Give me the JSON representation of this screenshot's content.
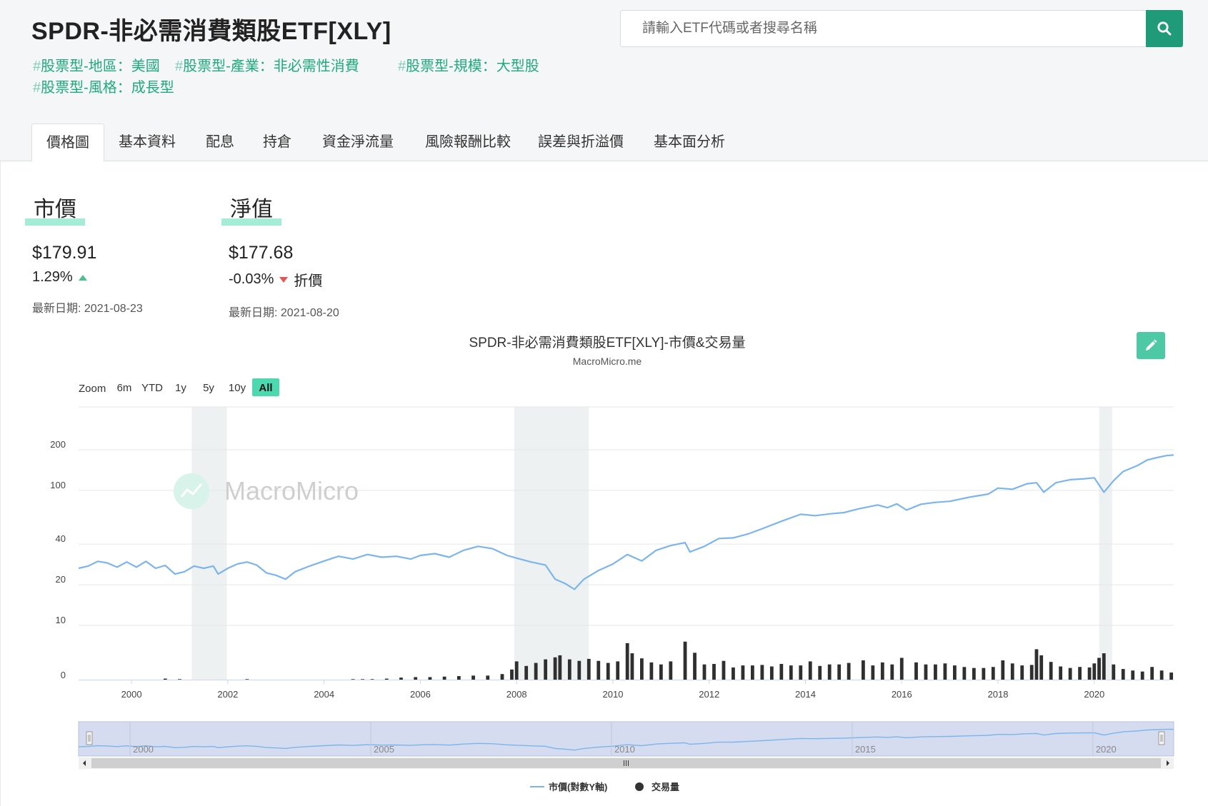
{
  "header": {
    "title": "SPDR-非必需消費類股ETF[XLY]",
    "tags": [
      {
        "hash": "#",
        "label": "股票型-地區：美國"
      },
      {
        "hash": "#",
        "label": "股票型-產業：非必需性消費"
      },
      {
        "hash": "#",
        "label": "股票型-規模：大型股"
      },
      {
        "hash": "#",
        "label": "股票型-風格：成長型"
      }
    ]
  },
  "search": {
    "placeholder": "請輸入ETF代碼或者搜尋名稱",
    "value": "",
    "button_icon": "search-icon"
  },
  "tabs": [
    {
      "label": "價格圖",
      "active": true
    },
    {
      "label": "基本資料",
      "active": false
    },
    {
      "label": "配息",
      "active": false
    },
    {
      "label": "持倉",
      "active": false
    },
    {
      "label": "資金淨流量",
      "active": false
    },
    {
      "label": "風險報酬比較",
      "active": false
    },
    {
      "label": "誤差與折溢價",
      "active": false
    },
    {
      "label": "基本面分析",
      "active": false
    }
  ],
  "market_price": {
    "label": "市價",
    "value": "$179.91",
    "change": "1.29%",
    "direction": "up",
    "date": "最新日期: 2021-08-23"
  },
  "nav": {
    "label": "淨值",
    "value": "$177.68",
    "change": "-0.03%",
    "direction": "down",
    "premium_label": "折價",
    "date": "最新日期: 2021-08-20"
  },
  "colors": {
    "accent": "#1f9b7a",
    "tag": "#1faa7e",
    "price_line": "#7cb5ec",
    "volume_bar": "#2f2f2f",
    "recession": "#eef1f1",
    "up": "#4cc08a",
    "down": "#e25656"
  },
  "chart_data": {
    "type": "line",
    "title": "SPDR-非必需消費類股ETF[XLY]-市價&交易量",
    "subtitle": "MacroMicro.me",
    "watermark": "MacroMicro",
    "zoom": {
      "label": "Zoom",
      "buttons": [
        "6m",
        "YTD",
        "1y",
        "5y",
        "10y",
        "All"
      ],
      "active": "All"
    },
    "x_range": [
      1998.9,
      2021.65
    ],
    "x_ticks": [
      "2000",
      "2002",
      "2004",
      "2006",
      "2008",
      "2010",
      "2012",
      "2014",
      "2016",
      "2018",
      "2020"
    ],
    "y_scale": "log",
    "y_ticks": [
      "200",
      "100",
      "40",
      "20",
      "10"
    ],
    "y_tick_values": [
      200,
      100,
      40,
      20,
      10
    ],
    "volume_axis_label": "0",
    "recessions": [
      [
        2001.25,
        2001.98
      ],
      [
        2007.95,
        2009.5
      ],
      [
        2020.1,
        2020.37
      ]
    ],
    "navigator_ticks": [
      "2000",
      "2005",
      "2010",
      "2015",
      "2020"
    ],
    "series": [
      {
        "name": "市價(對數Y軸)",
        "type": "line",
        "points": [
          [
            1998.9,
            26.5
          ],
          [
            1999.1,
            27.5
          ],
          [
            1999.3,
            29.8
          ],
          [
            1999.5,
            29.0
          ],
          [
            1999.7,
            27.0
          ],
          [
            1999.9,
            29.5
          ],
          [
            2000.1,
            27.0
          ],
          [
            2000.3,
            29.8
          ],
          [
            2000.5,
            26.5
          ],
          [
            2000.7,
            27.8
          ],
          [
            2000.9,
            24.0
          ],
          [
            2001.1,
            25.0
          ],
          [
            2001.3,
            27.5
          ],
          [
            2001.5,
            26.5
          ],
          [
            2001.7,
            27.5
          ],
          [
            2001.8,
            24.0
          ],
          [
            2002.0,
            26.5
          ],
          [
            2002.2,
            28.5
          ],
          [
            2002.4,
            29.5
          ],
          [
            2002.6,
            28.0
          ],
          [
            2002.8,
            24.5
          ],
          [
            2003.0,
            23.5
          ],
          [
            2003.2,
            22.0
          ],
          [
            2003.4,
            25.0
          ],
          [
            2003.7,
            27.5
          ],
          [
            2004.0,
            30.0
          ],
          [
            2004.3,
            32.5
          ],
          [
            2004.6,
            31.0
          ],
          [
            2004.9,
            33.5
          ],
          [
            2005.2,
            32.0
          ],
          [
            2005.5,
            32.5
          ],
          [
            2005.8,
            31.0
          ],
          [
            2006.0,
            33.0
          ],
          [
            2006.3,
            34.0
          ],
          [
            2006.6,
            32.0
          ],
          [
            2006.9,
            36.0
          ],
          [
            2007.2,
            38.5
          ],
          [
            2007.5,
            37.0
          ],
          [
            2007.8,
            33.0
          ],
          [
            2008.0,
            31.5
          ],
          [
            2008.3,
            29.5
          ],
          [
            2008.6,
            28.0
          ],
          [
            2008.8,
            22.0
          ],
          [
            2009.0,
            20.5
          ],
          [
            2009.2,
            18.5
          ],
          [
            2009.4,
            22.0
          ],
          [
            2009.7,
            25.5
          ],
          [
            2010.0,
            28.5
          ],
          [
            2010.3,
            33.5
          ],
          [
            2010.6,
            30.0
          ],
          [
            2010.9,
            36.0
          ],
          [
            2011.2,
            39.0
          ],
          [
            2011.5,
            41.0
          ],
          [
            2011.6,
            35.0
          ],
          [
            2011.9,
            38.5
          ],
          [
            2012.2,
            44.0
          ],
          [
            2012.5,
            44.5
          ],
          [
            2012.8,
            47.5
          ],
          [
            2013.1,
            52.0
          ],
          [
            2013.5,
            59.0
          ],
          [
            2013.9,
            66.5
          ],
          [
            2014.2,
            65.0
          ],
          [
            2014.5,
            67.0
          ],
          [
            2014.8,
            68.5
          ],
          [
            2015.1,
            73.0
          ],
          [
            2015.5,
            78.0
          ],
          [
            2015.7,
            74.5
          ],
          [
            2015.9,
            79.5
          ],
          [
            2016.1,
            71.5
          ],
          [
            2016.4,
            79.0
          ],
          [
            2016.7,
            81.5
          ],
          [
            2017.0,
            83.0
          ],
          [
            2017.4,
            89.0
          ],
          [
            2017.8,
            94.0
          ],
          [
            2018.0,
            104.0
          ],
          [
            2018.3,
            102.0
          ],
          [
            2018.6,
            112.0
          ],
          [
            2018.8,
            114.0
          ],
          [
            2018.95,
            97.0
          ],
          [
            2019.2,
            114.0
          ],
          [
            2019.5,
            120.0
          ],
          [
            2019.8,
            122.0
          ],
          [
            2020.0,
            124.0
          ],
          [
            2020.2,
            97.0
          ],
          [
            2020.4,
            118.0
          ],
          [
            2020.6,
            138.0
          ],
          [
            2020.9,
            153.0
          ],
          [
            2021.1,
            168.0
          ],
          [
            2021.3,
            175.0
          ],
          [
            2021.5,
            181.0
          ],
          [
            2021.65,
            183.0
          ]
        ]
      },
      {
        "name": "交易量",
        "type": "column",
        "note": "relative monthly volume, 0-1 scale",
        "values": [
          [
            2000.7,
            0.02
          ],
          [
            2001.0,
            0.01
          ],
          [
            2002.4,
            0.01
          ],
          [
            2004.6,
            0.01
          ],
          [
            2004.8,
            0.01
          ],
          [
            2005.0,
            0.01
          ],
          [
            2005.3,
            0.02
          ],
          [
            2005.6,
            0.04
          ],
          [
            2005.9,
            0.05
          ],
          [
            2006.2,
            0.05
          ],
          [
            2006.5,
            0.06
          ],
          [
            2006.8,
            0.07
          ],
          [
            2007.1,
            0.08
          ],
          [
            2007.4,
            0.08
          ],
          [
            2007.7,
            0.11
          ],
          [
            2007.9,
            0.2
          ],
          [
            2008.0,
            0.36
          ],
          [
            2008.2,
            0.27
          ],
          [
            2008.4,
            0.33
          ],
          [
            2008.6,
            0.4
          ],
          [
            2008.8,
            0.44
          ],
          [
            2008.9,
            0.48
          ],
          [
            2009.1,
            0.4
          ],
          [
            2009.3,
            0.37
          ],
          [
            2009.5,
            0.41
          ],
          [
            2009.7,
            0.37
          ],
          [
            2009.9,
            0.33
          ],
          [
            2010.1,
            0.36
          ],
          [
            2010.3,
            0.72
          ],
          [
            2010.4,
            0.52
          ],
          [
            2010.6,
            0.42
          ],
          [
            2010.8,
            0.34
          ],
          [
            2011.0,
            0.3
          ],
          [
            2011.2,
            0.36
          ],
          [
            2011.5,
            0.75
          ],
          [
            2011.7,
            0.53
          ],
          [
            2011.9,
            0.3
          ],
          [
            2012.1,
            0.31
          ],
          [
            2012.3,
            0.37
          ],
          [
            2012.5,
            0.24
          ],
          [
            2012.7,
            0.28
          ],
          [
            2012.9,
            0.28
          ],
          [
            2013.1,
            0.29
          ],
          [
            2013.3,
            0.26
          ],
          [
            2013.5,
            0.31
          ],
          [
            2013.7,
            0.28
          ],
          [
            2013.9,
            0.28
          ],
          [
            2014.1,
            0.36
          ],
          [
            2014.3,
            0.27
          ],
          [
            2014.5,
            0.3
          ],
          [
            2014.7,
            0.3
          ],
          [
            2014.9,
            0.33
          ],
          [
            2015.2,
            0.38
          ],
          [
            2015.4,
            0.28
          ],
          [
            2015.6,
            0.34
          ],
          [
            2015.8,
            0.3
          ],
          [
            2016.0,
            0.43
          ],
          [
            2016.3,
            0.34
          ],
          [
            2016.5,
            0.3
          ],
          [
            2016.7,
            0.3
          ],
          [
            2016.9,
            0.32
          ],
          [
            2017.1,
            0.28
          ],
          [
            2017.3,
            0.25
          ],
          [
            2017.5,
            0.23
          ],
          [
            2017.7,
            0.23
          ],
          [
            2017.9,
            0.25
          ],
          [
            2018.1,
            0.38
          ],
          [
            2018.3,
            0.32
          ],
          [
            2018.5,
            0.28
          ],
          [
            2018.7,
            0.29
          ],
          [
            2018.8,
            0.6
          ],
          [
            2018.9,
            0.48
          ],
          [
            2019.1,
            0.35
          ],
          [
            2019.3,
            0.26
          ],
          [
            2019.5,
            0.23
          ],
          [
            2019.7,
            0.25
          ],
          [
            2019.9,
            0.24
          ],
          [
            2020.0,
            0.32
          ],
          [
            2020.1,
            0.43
          ],
          [
            2020.2,
            0.52
          ],
          [
            2020.4,
            0.3
          ],
          [
            2020.6,
            0.21
          ],
          [
            2020.8,
            0.18
          ],
          [
            2021.0,
            0.16
          ],
          [
            2021.2,
            0.25
          ],
          [
            2021.4,
            0.18
          ],
          [
            2021.6,
            0.14
          ]
        ]
      }
    ],
    "legend": {
      "position": "bottom-center",
      "items": [
        "市價(對數Y軸)",
        "交易量"
      ]
    }
  }
}
